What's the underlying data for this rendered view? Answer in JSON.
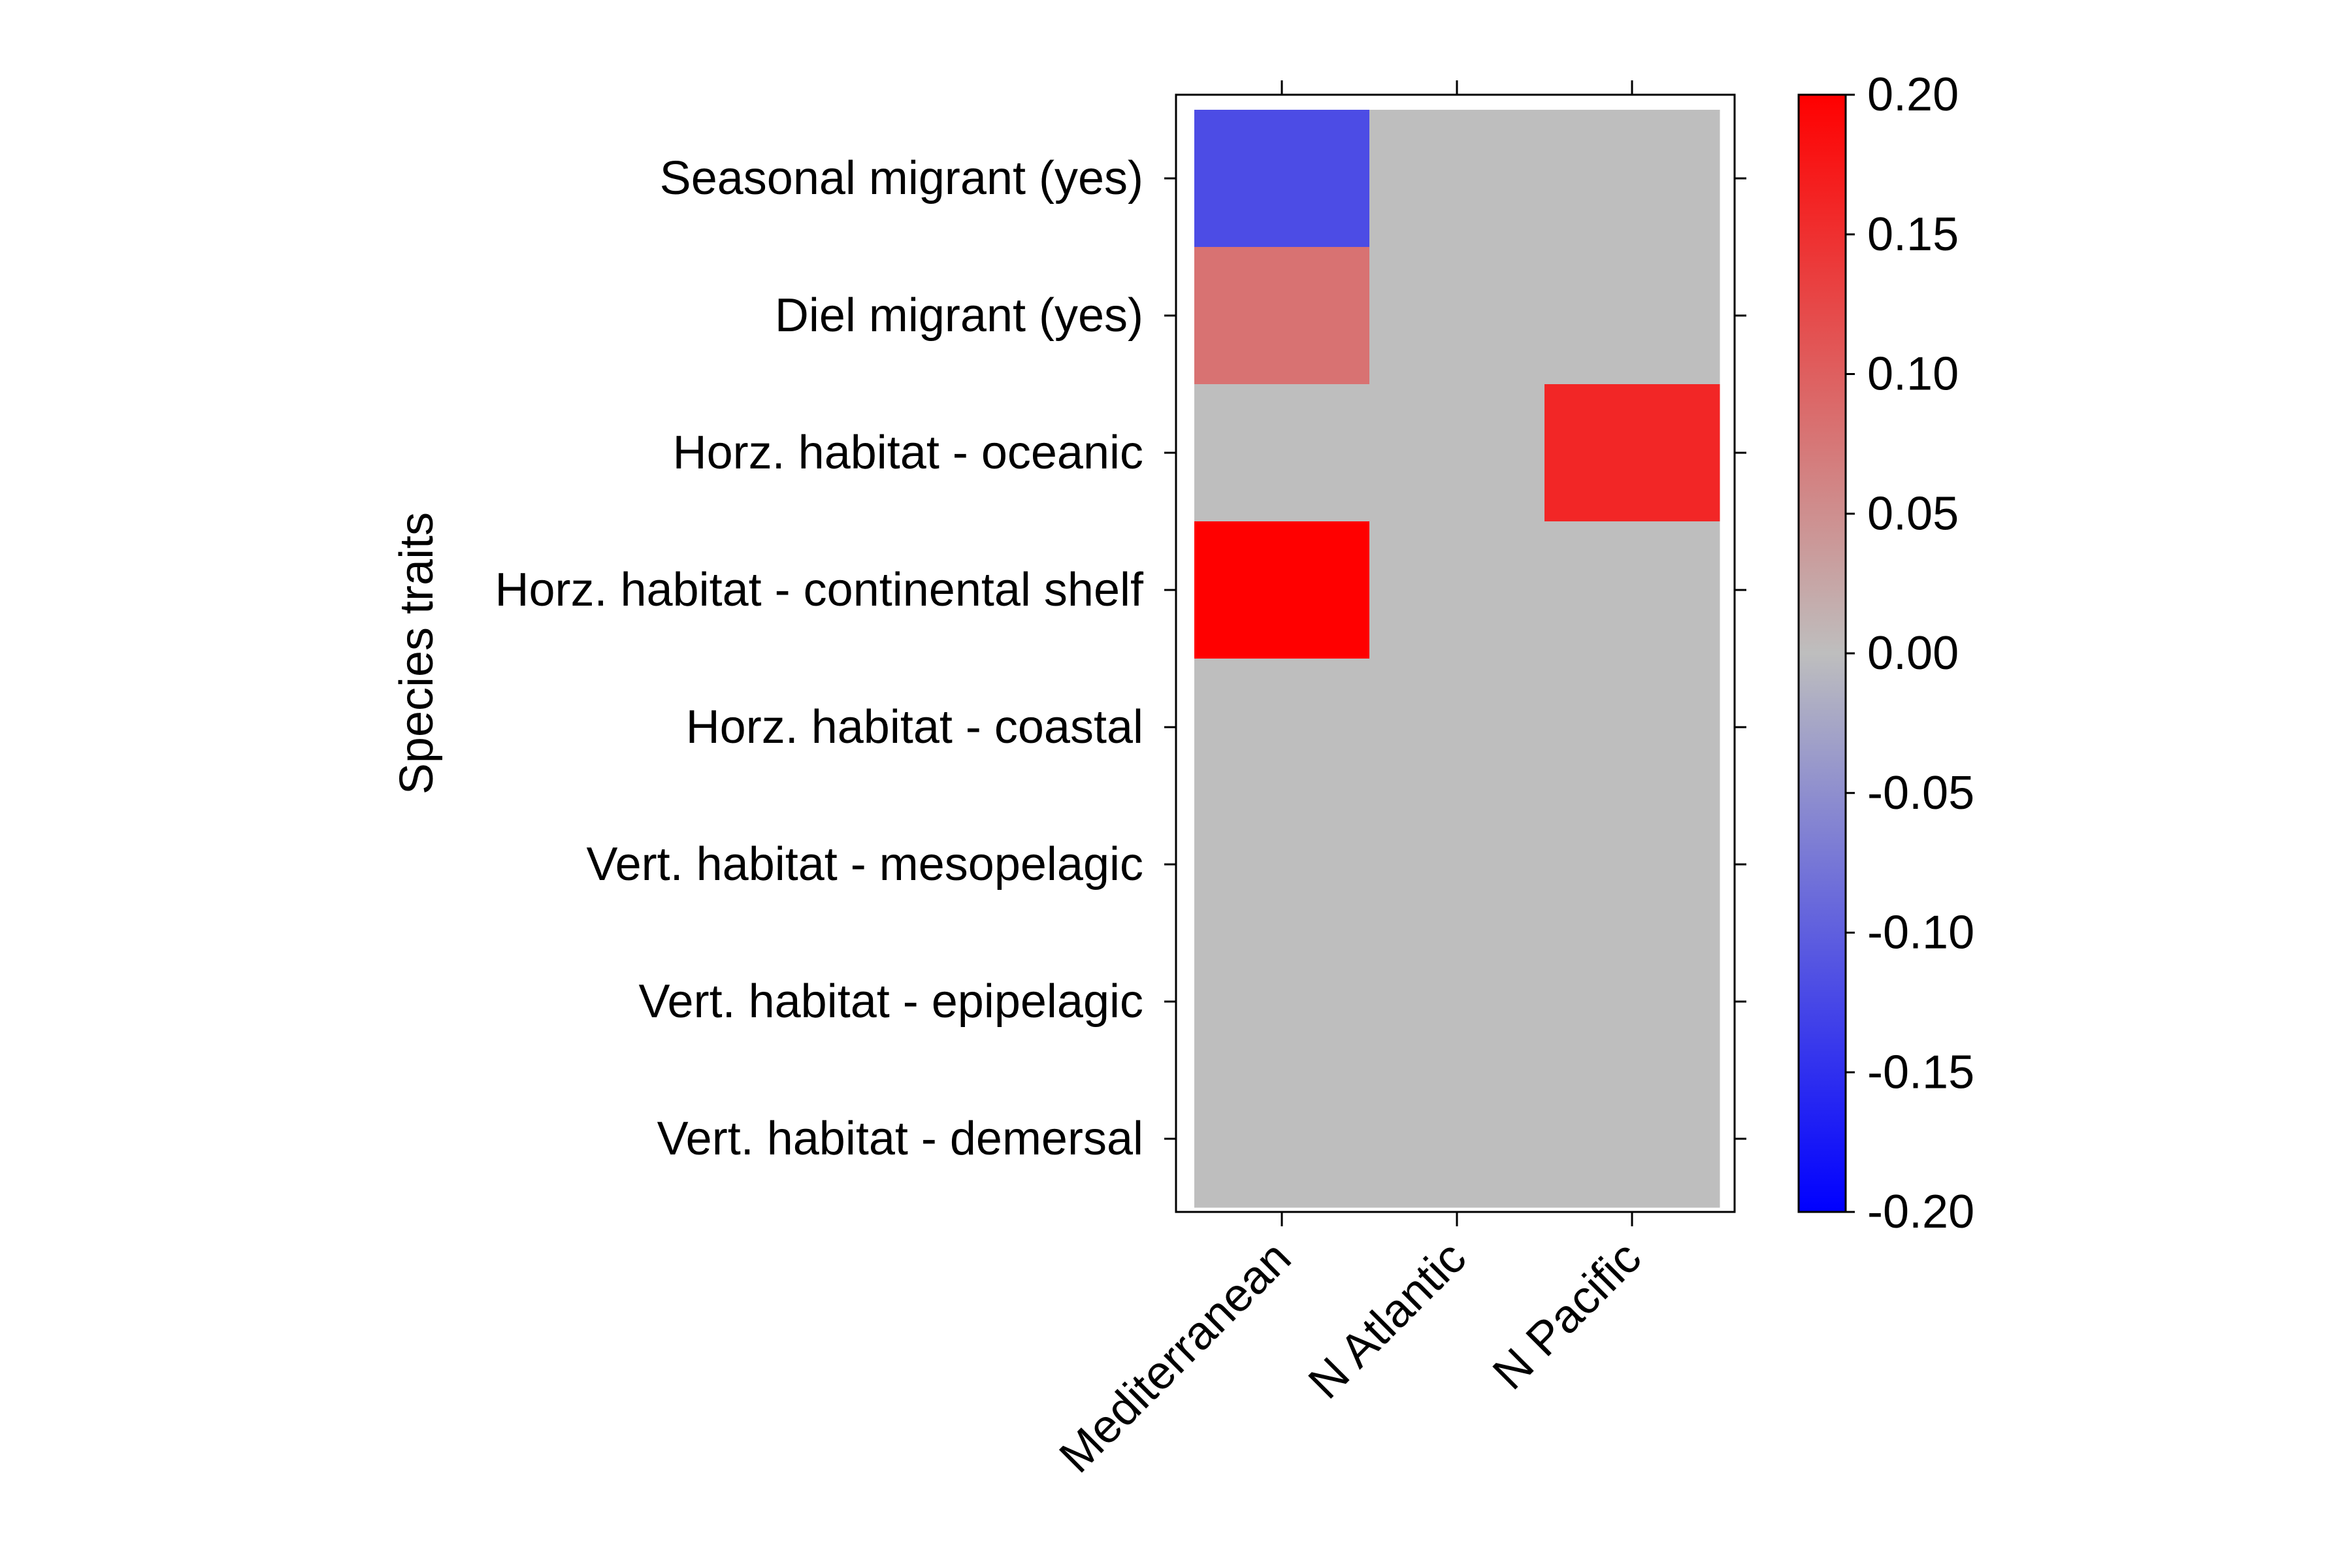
{
  "chart_data": {
    "type": "heatmap",
    "title": "",
    "xlabel": "",
    "ylabel": "Species traits",
    "x_categories": [
      "Mediterranean",
      "N Atlantic",
      "N Pacific"
    ],
    "y_categories": [
      "Seasonal migrant (yes)",
      "Diel migrant (yes)",
      "Horz. habitat - oceanic",
      "Horz. habitat - continental shelf",
      "Horz. habitat - coastal",
      "Vert. habitat - mesopelagic",
      "Vert. habitat - epipelagic",
      "Vert. habitat - demersal"
    ],
    "values": [
      [
        -0.12,
        0,
        0
      ],
      [
        0.08,
        0,
        0
      ],
      [
        0,
        0,
        0.16
      ],
      [
        0.2,
        0,
        0
      ],
      [
        0,
        0,
        0
      ],
      [
        0,
        0,
        0
      ],
      [
        0,
        0,
        0
      ],
      [
        0,
        0,
        0
      ]
    ],
    "colorbar": {
      "range": [
        -0.2,
        0.2
      ],
      "ticks": [
        "-0.20",
        "-0.15",
        "-0.10",
        "-0.05",
        "0.00",
        "0.05",
        "0.10",
        "0.15",
        "0.20"
      ],
      "colors": {
        "low": "#0000ff",
        "mid": "#bebebe",
        "high": "#ff0000"
      }
    },
    "grid": false,
    "legend": "colorbar-right"
  }
}
